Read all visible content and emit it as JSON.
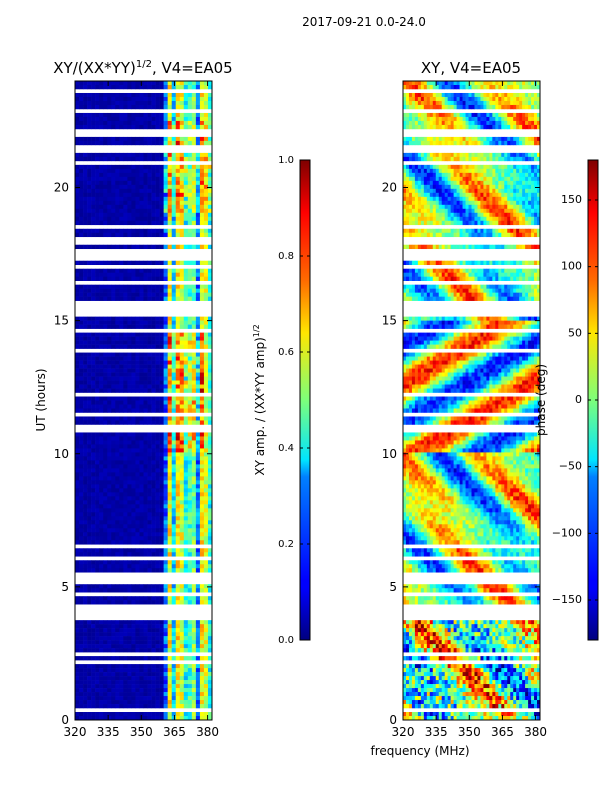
{
  "suptitle": "2017-09-21 0.0-24.0",
  "chart_data": [
    {
      "type": "heatmap",
      "title_main": "XY/(XX*YY)",
      "title_exp": "1/2",
      "title_rest": ", V4=EA05",
      "xlabel": "",
      "ylabel": "UT (hours)",
      "xlim": [
        320,
        382
      ],
      "ylim": [
        0,
        24
      ],
      "xticks": [
        320,
        335,
        350,
        365,
        380
      ],
      "yticks": [
        0,
        5,
        10,
        15,
        20
      ],
      "colorbar": {
        "label_main": "XY amp. / (XX*YY amp)",
        "label_exp": "1/2",
        "range": [
          0.0,
          1.0
        ],
        "ticks": [
          "0.0",
          "0.2",
          "0.4",
          "0.6",
          "0.8",
          "1.0"
        ],
        "colormap": "jet"
      }
    },
    {
      "type": "heatmap",
      "title_main": "XY, V4=EA05",
      "title_exp": "",
      "title_rest": "",
      "xlabel": "frequency (MHz)",
      "ylabel": "",
      "xlim": [
        320,
        382
      ],
      "ylim": [
        0,
        24
      ],
      "xticks": [
        320,
        335,
        350,
        365,
        380
      ],
      "yticks": [
        0,
        5,
        10,
        15,
        20
      ],
      "colorbar": {
        "label_main": "phase (deg)",
        "label_exp": "",
        "range": [
          -180,
          180
        ],
        "ticks": [
          "−150",
          "−100",
          "−50",
          "0",
          "50",
          "100",
          "150"
        ],
        "colormap": "jet"
      }
    }
  ]
}
